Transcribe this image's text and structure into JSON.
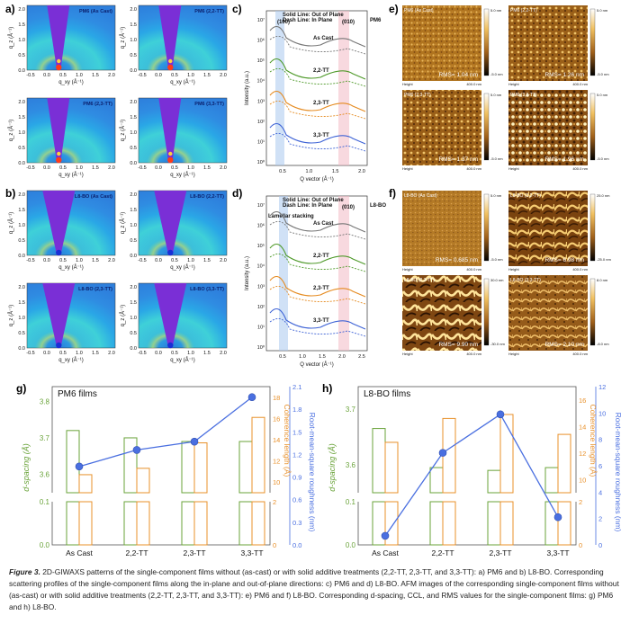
{
  "panels": {
    "a": {
      "label": "a)",
      "maps": [
        "PM6 (As Cast)",
        "PM6 (2,2-TT)",
        "PM6 (2,3-TT)",
        "PM6 (3,3-TT)"
      ]
    },
    "b": {
      "label": "b)",
      "maps": [
        "L8-BO (As Cast)",
        "L8-BO (2,2-TT)",
        "L8-BO (2,3-TT)",
        "L8-BO (3,3-TT)"
      ]
    },
    "gi_axes": {
      "xlabel": "q_xy (Å⁻¹)",
      "ylabel": "q_z (Å⁻¹)",
      "xticks": [
        "-0.5",
        "0.0",
        "0.5",
        "1.0",
        "1.5",
        "2.0"
      ],
      "yticks": [
        "0.0",
        "0.5",
        "1.0",
        "1.5",
        "2.0"
      ]
    },
    "c": {
      "label": "c)",
      "material": "PM6",
      "legend": [
        "Solid Line: Out of Plane",
        "Dash Line: In Plane"
      ],
      "peaks": [
        "(100)",
        "(010)"
      ],
      "series": [
        "As Cast",
        "2,2-TT",
        "2,3-TT",
        "3,3-TT"
      ],
      "ylabel": "Intensity (a.u.)",
      "xlabel": "Q vector (Å⁻¹)",
      "yticks": [
        "10⁶",
        "10⁷",
        "10⁶",
        "10⁵",
        "10⁴",
        "10³",
        "10²",
        "10¹",
        "10⁰"
      ],
      "xticks": [
        "0.5",
        "1.0",
        "1.5",
        "2.0"
      ]
    },
    "d": {
      "label": "d)",
      "material": "L8-BO",
      "legend": [
        "Solid Line: Out of Plane",
        "Dash Line: In Plane"
      ],
      "peaks": [
        "Lamellar stacking",
        "(010)"
      ],
      "series": [
        "As Cast",
        "2,2-TT",
        "2,3-TT",
        "3,3-TT"
      ],
      "ylabel": "Intensity (a.u.)",
      "xlabel": "Q vector (Å⁻¹)",
      "yticks": [
        "10⁶",
        "10⁷",
        "10⁶",
        "10⁵",
        "10⁴",
        "10³",
        "10²",
        "10¹",
        "10⁰"
      ],
      "xticks": [
        "0.5",
        "1.0",
        "1.5",
        "2.0",
        "2.5"
      ]
    },
    "e": {
      "label": "e)",
      "images": [
        {
          "title": "PM6 (As Cast)",
          "rms": "RMS= 1.04 nm",
          "scale_top": "5.0 nm",
          "scale_bottom": "-5.0 nm"
        },
        {
          "title": "PM6 (2,2-TT)",
          "rms": "RMS= 1.26 nm",
          "scale_top": "5.0 nm",
          "scale_bottom": "-5.0 nm"
        },
        {
          "title": "PM6 (2,3-TT)",
          "rms": "RMS= 1.37 nm",
          "scale_top": "5.0 nm",
          "scale_bottom": "-5.0 nm"
        },
        {
          "title": "PM6 (3,3-TT)",
          "rms": "RMS= 1.96 nm",
          "scale_top": "5.0 nm",
          "scale_bottom": "-5.0 nm"
        }
      ],
      "footer_left": "Height",
      "footer_right": "400.0 nm"
    },
    "f": {
      "label": "f)",
      "images": [
        {
          "title": "L8-BO (As Cast)",
          "rms": "RMS= 0.685 nm",
          "scale_top": "5.0 nm",
          "scale_bottom": "-5.0 nm"
        },
        {
          "title": "L8-BO (2,2-TT)",
          "rms": "RMS= 6.98 nm",
          "scale_top": "25.0 nm",
          "scale_bottom": "-25.0 nm"
        },
        {
          "title": "L8-BO (2,3-TT)",
          "rms": "RMS= 9.90 nm",
          "scale_top": "30.0 nm",
          "scale_bottom": "-30.0 nm"
        },
        {
          "title": "L8-BO (3,3-TT)",
          "rms": "RMS= 2.10 nm",
          "scale_top": "8.0 nm",
          "scale_bottom": "-8.0 nm"
        }
      ],
      "footer_left": "Height",
      "footer_right": "400.0 nm"
    }
  },
  "chart_data": [
    {
      "type": "bar",
      "panel": "g)",
      "title": "PM6 films",
      "categories": [
        "As Cast",
        "2,2-TT",
        "2,3-TT",
        "3,3-TT"
      ],
      "ylabel": "d-spacing (Å)",
      "ylabel_right1": "Coherence length (Å)",
      "ylabel_right2": "Root-mean-square roughness (nm)",
      "left_ticks_upper": [
        "3.6",
        "3.7",
        "3.8"
      ],
      "left_ticks_lower": [
        "0.0",
        "0.1"
      ],
      "right1_ticks_upper": [
        "10",
        "12",
        "14",
        "16",
        "18"
      ],
      "right1_ticks_lower": [
        "0",
        "2"
      ],
      "right2_ticks": [
        "0.0",
        "0.3",
        "0.6",
        "0.9",
        "1.2",
        "1.5",
        "1.8",
        "2.1"
      ],
      "series": [
        {
          "name": "d-spacing",
          "axis": "left",
          "values": [
            3.72,
            3.7,
            3.69,
            3.69
          ],
          "color": "#6aa33a"
        },
        {
          "name": "Coherence length",
          "axis": "right1",
          "values": [
            10.7,
            11.3,
            13.7,
            16.1
          ],
          "color": "#e8902a"
        },
        {
          "name": "RMS roughness",
          "axis": "right2",
          "values": [
            1.04,
            1.26,
            1.37,
            1.96
          ],
          "color": "#4a6fe0"
        }
      ]
    },
    {
      "type": "bar",
      "panel": "h)",
      "title": "L8-BO films",
      "categories": [
        "As Cast",
        "2,2-TT",
        "2,3-TT",
        "3,3-TT"
      ],
      "ylabel": "d-spacing (Å)",
      "ylabel_right1": "Coherence length (Å)",
      "ylabel_right2": "Root-mean-square roughness (nm)",
      "left_ticks_upper": [
        "3.6",
        "3.7"
      ],
      "left_ticks_lower": [
        "0.0",
        "0.1"
      ],
      "right1_ticks_upper": [
        "10",
        "12",
        "14",
        "16"
      ],
      "right1_ticks_lower": [
        "0",
        "2"
      ],
      "right2_ticks": [
        "0",
        "2",
        "4",
        "6",
        "8",
        "10",
        "12"
      ],
      "series": [
        {
          "name": "d-spacing",
          "axis": "left",
          "values": [
            3.665,
            3.595,
            3.59,
            3.595
          ],
          "color": "#6aa33a"
        },
        {
          "name": "Coherence length",
          "axis": "right1",
          "values": [
            12.8,
            14.6,
            14.9,
            13.4
          ],
          "color": "#e8902a"
        },
        {
          "name": "RMS roughness",
          "axis": "right2",
          "values": [
            0.685,
            6.98,
            9.9,
            2.1
          ],
          "color": "#4a6fe0"
        }
      ]
    }
  ],
  "caption": {
    "lead": "Figure 3.",
    "text": " 2D-GIWAXS patterns of the single-component films without (as-cast) or with solid additive treatments (2,2-TT, 2,3-TT, and 3,3-TT): a) PM6 and b) L8-BO. Corresponding scattering profiles of the single-component films along the in-plane and out-of-plane directions: c) PM6 and d) L8-BO. AFM images of the corresponding single-component films without (as-cast) or with solid additive treatments (2,2-TT, 2,3-TT, and 3,3-TT): e) PM6 and f) L8-BO. Corresponding d-spacing, CCL, and RMS values for the single-component films: g) PM6 and h) L8-BO."
  }
}
